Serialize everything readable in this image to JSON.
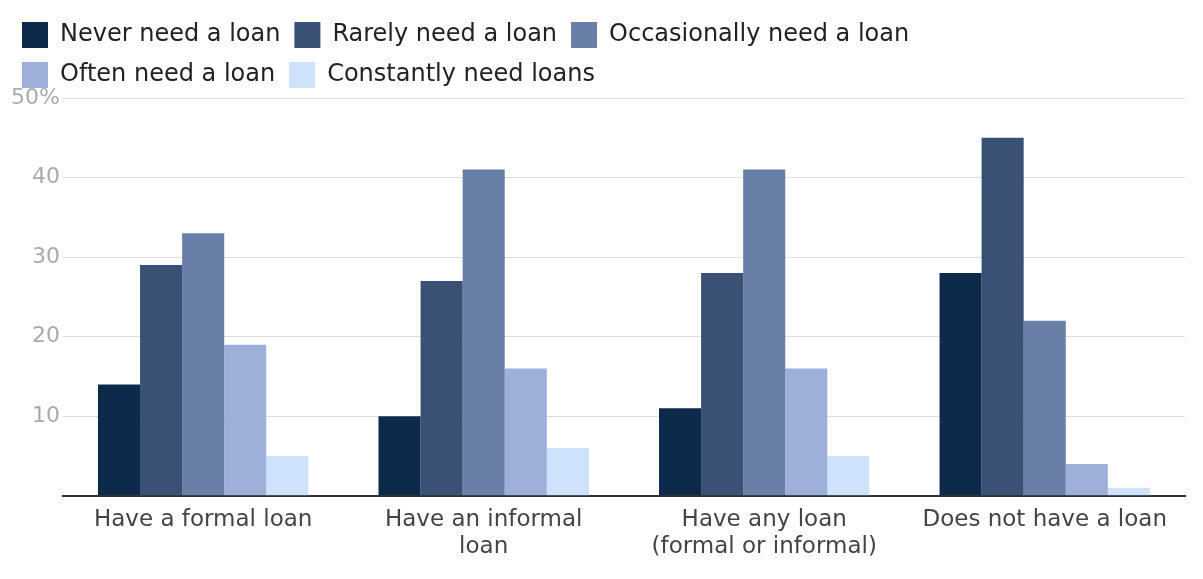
{
  "chart_data": {
    "type": "bar",
    "categories": [
      "Have a formal loan",
      "Have an informal loan",
      "Have any loan (formal or informal)",
      "Does not have a loan"
    ],
    "series": [
      {
        "name": "Never need a loan",
        "color": "#0e2a4a",
        "values": [
          14,
          10,
          11,
          28
        ]
      },
      {
        "name": "Rarely need a loan",
        "color": "#3b5075",
        "values": [
          29,
          27,
          28,
          45
        ]
      },
      {
        "name": "Occasionally need a loan",
        "color": "#6a7fa8",
        "values": [
          33,
          41,
          41,
          22
        ]
      },
      {
        "name": "Often need a loan",
        "color": "#9eb0da",
        "values": [
          19,
          16,
          16,
          4
        ]
      },
      {
        "name": "Constantly need loans",
        "color": "#cfe2fb",
        "values": [
          5,
          6,
          5,
          1
        ]
      }
    ],
    "ylim": [
      0,
      50
    ],
    "yticks": [
      {
        "value": 0,
        "label": null
      },
      10,
      20,
      30,
      40,
      {
        "value": 50,
        "label": "50%"
      }
    ],
    "grid": "y",
    "legend": "top left"
  }
}
